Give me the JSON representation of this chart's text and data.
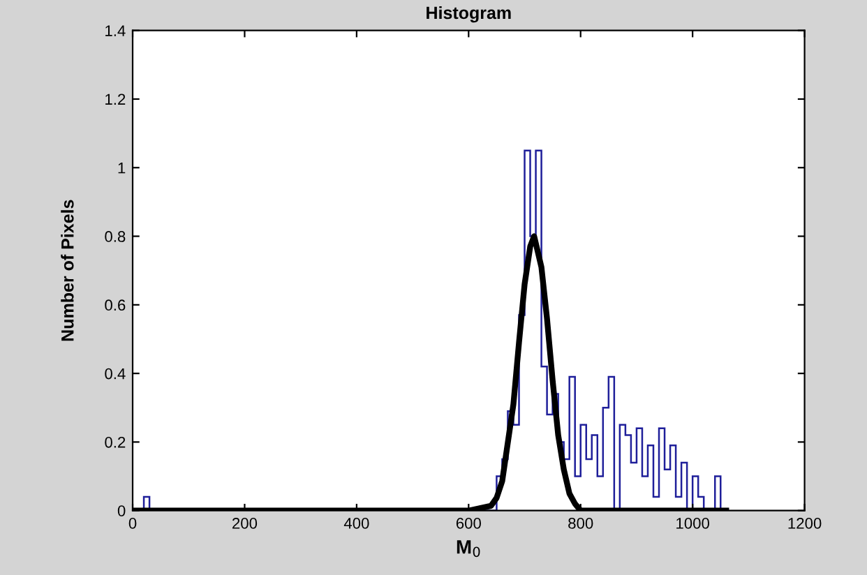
{
  "chart_data": {
    "type": "histogram",
    "title": "Histogram",
    "xlabel": "M$_{0}$",
    "ylabel": "Number of Pixels",
    "bins": [
      0,
      10,
      20,
      30,
      40,
      50,
      60,
      70,
      80,
      90,
      100,
      110,
      120,
      130,
      140,
      150,
      160,
      170,
      180,
      190,
      200,
      210,
      220,
      230,
      240,
      250,
      260,
      270,
      280,
      290,
      300,
      310,
      320,
      330,
      340,
      350,
      360,
      370,
      380,
      390,
      400,
      410,
      420,
      430,
      440,
      450,
      460,
      470,
      480,
      490,
      500,
      510,
      520,
      530,
      540,
      550,
      560,
      570,
      580,
      590,
      600,
      610,
      620,
      630,
      640,
      650,
      660,
      670,
      680,
      690,
      700,
      710,
      720,
      730,
      740,
      750,
      760,
      770,
      780,
      790,
      800,
      810,
      820,
      830,
      840,
      850,
      860,
      870,
      880,
      890,
      900,
      910,
      920,
      930,
      940,
      950,
      960,
      970,
      980,
      990,
      1000,
      1010,
      1020,
      1030,
      1040,
      1050,
      1060
    ],
    "series": [
      {
        "color": "#1f1f9a",
        "values": [
          0,
          0,
          0.04,
          0,
          0,
          0,
          0,
          0,
          0,
          0,
          0,
          0,
          0,
          0,
          0,
          0,
          0,
          0,
          0,
          0,
          0,
          0,
          0,
          0,
          0,
          0,
          0,
          0,
          0,
          0,
          0,
          0,
          0,
          0,
          0,
          0,
          0,
          0,
          0,
          0,
          0,
          0,
          0,
          0,
          0,
          0,
          0,
          0,
          0,
          0,
          0,
          0,
          0,
          0,
          0,
          0,
          0,
          0,
          0,
          0,
          0,
          0,
          0,
          0,
          0,
          0.1,
          0.15,
          0.29,
          0.25,
          0.57,
          1.05,
          0.8,
          1.05,
          0.42,
          0.28,
          0.34,
          0.2,
          0.15,
          0.39,
          0.1,
          0.25,
          0.15,
          0.22,
          0.1,
          0.3,
          0.39,
          0,
          0.25,
          0.22,
          0.14,
          0.24,
          0.1,
          0.19,
          0.04,
          0.24,
          0.12,
          0.19,
          0.04,
          0.14,
          0,
          0.1,
          0.04,
          0,
          0,
          0.1,
          0
        ]
      },
      {
        "type": "line",
        "color": "#000000",
        "x": [
          0,
          500,
          600,
          640,
          650,
          660,
          680,
          690,
          700,
          710,
          717,
          730,
          740,
          750,
          760,
          770,
          780,
          790,
          800,
          900,
          1060
        ],
        "values": [
          0,
          0,
          0,
          0.014,
          0.037,
          0.086,
          0.31,
          0.49,
          0.66,
          0.77,
          0.8,
          0.71,
          0.56,
          0.38,
          0.22,
          0.12,
          0.05,
          0.02,
          0,
          0,
          0
        ]
      }
    ],
    "xlim": [
      0,
      1200
    ],
    "xticks": [
      0,
      200,
      400,
      600,
      800,
      1000,
      1200
    ],
    "ylim": [
      0,
      1.4
    ],
    "yticks": [
      0,
      0.2,
      0.4,
      0.6,
      0.8,
      1,
      1.2,
      1.4
    ]
  }
}
